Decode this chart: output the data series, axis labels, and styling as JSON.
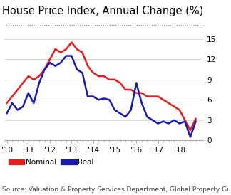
{
  "title": "House Price Index, Annual Change (%)",
  "source": "Source: Valuation & Property Services Department, Global Property Guide",
  "nominal": {
    "x": [
      2010.0,
      2010.25,
      2010.5,
      2010.75,
      2011.0,
      2011.25,
      2011.5,
      2011.75,
      2012.0,
      2012.25,
      2012.5,
      2012.75,
      2013.0,
      2013.25,
      2013.5,
      2013.75,
      2014.0,
      2014.25,
      2014.5,
      2014.75,
      2015.0,
      2015.25,
      2015.5,
      2015.75,
      2016.0,
      2016.25,
      2016.5,
      2016.75,
      2017.0,
      2017.25,
      2017.5,
      2017.75,
      2018.0,
      2018.25,
      2018.5,
      2018.75
    ],
    "y": [
      5.5,
      6.5,
      7.5,
      8.5,
      9.5,
      9.0,
      9.5,
      10.5,
      12.0,
      13.5,
      13.0,
      13.5,
      14.5,
      13.5,
      13.0,
      11.0,
      10.0,
      9.5,
      9.5,
      9.0,
      9.0,
      8.5,
      7.5,
      7.5,
      7.0,
      7.0,
      6.5,
      6.5,
      6.5,
      6.0,
      5.5,
      5.0,
      4.5,
      3.0,
      1.5,
      3.2
    ]
  },
  "real": {
    "x": [
      2010.0,
      2010.25,
      2010.5,
      2010.75,
      2011.0,
      2011.25,
      2011.5,
      2011.75,
      2012.0,
      2012.25,
      2012.5,
      2012.75,
      2013.0,
      2013.25,
      2013.5,
      2013.75,
      2014.0,
      2014.25,
      2014.5,
      2014.75,
      2015.0,
      2015.25,
      2015.5,
      2015.75,
      2016.0,
      2016.25,
      2016.5,
      2016.75,
      2017.0,
      2017.25,
      2017.5,
      2017.75,
      2018.0,
      2018.25,
      2018.5,
      2018.75
    ],
    "y": [
      4.0,
      5.5,
      4.5,
      5.0,
      7.0,
      5.5,
      8.5,
      10.5,
      11.5,
      11.0,
      11.5,
      12.5,
      12.5,
      10.5,
      10.0,
      6.5,
      6.5,
      6.0,
      6.2,
      6.0,
      4.5,
      4.0,
      3.5,
      4.5,
      8.5,
      5.5,
      3.5,
      3.0,
      2.5,
      2.8,
      2.5,
      3.0,
      2.5,
      2.8,
      0.5,
      2.8
    ]
  },
  "nominal_color": "#e02020",
  "real_color": "#1a1aaa",
  "ylim": [
    0,
    15
  ],
  "yticks": [
    0,
    3,
    6,
    9,
    12,
    15
  ],
  "xtick_labels": [
    "'10",
    "'11",
    "'12",
    "'13",
    "'14",
    "'15",
    "'16",
    "'17",
    "'18"
  ],
  "xtick_positions": [
    2010,
    2011,
    2012,
    2013,
    2014,
    2015,
    2016,
    2017,
    2018
  ],
  "background_color": "#ffffff",
  "title_fontsize": 10.5,
  "source_fontsize": 6.5,
  "line_width": 1.8
}
